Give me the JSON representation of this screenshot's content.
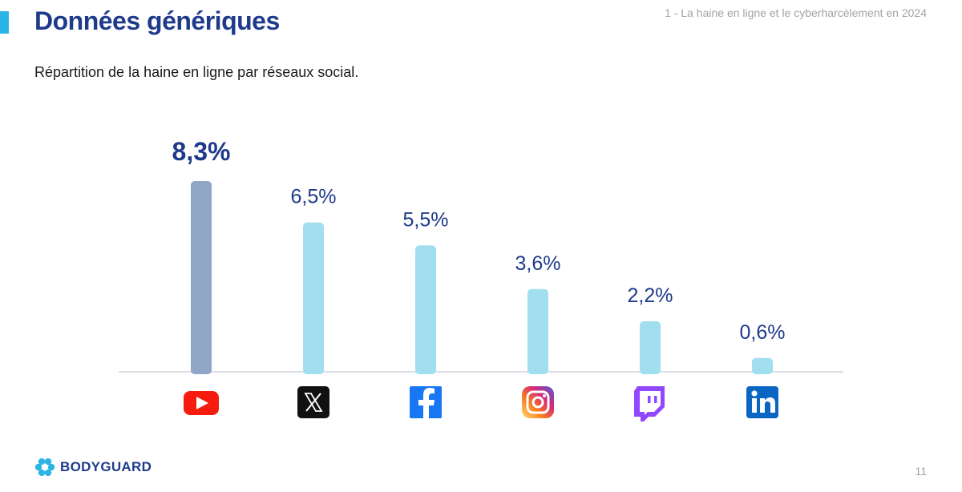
{
  "header": {
    "title": "Données génériques",
    "section_note": "1 - La haine en ligne et le cyberharcèlement en 2024"
  },
  "subtitle": "Répartition de la haine en ligne par réseaux social.",
  "chart_data": {
    "type": "bar",
    "categories": [
      "YouTube",
      "X",
      "Facebook",
      "Instagram",
      "Twitch",
      "LinkedIn"
    ],
    "category_icons": [
      "youtube-icon",
      "x-icon",
      "facebook-icon",
      "instagram-icon",
      "twitch-icon",
      "linkedin-icon"
    ],
    "values": [
      8.3,
      6.5,
      5.5,
      3.6,
      2.2,
      0.6
    ],
    "value_labels": [
      "8,3%",
      "6,5%",
      "5,5%",
      "3,6%",
      "2,2%",
      "0,6%"
    ],
    "highlight_index": 0,
    "ylim": [
      0,
      8.3
    ],
    "grid": false,
    "legend": "none"
  },
  "footer": {
    "brand": "BODYGUARD",
    "page_number": "11"
  },
  "colors": {
    "title": "#1e3a8a",
    "accent": "#29b5e8",
    "bar_highlight": "#8fa6c6",
    "bar_default": "#a0def0",
    "value_label": "#1e3a8a",
    "baseline": "#cfd3d8",
    "muted_text": "#a3a3a3",
    "brand_icon": "#2bb4e6"
  }
}
